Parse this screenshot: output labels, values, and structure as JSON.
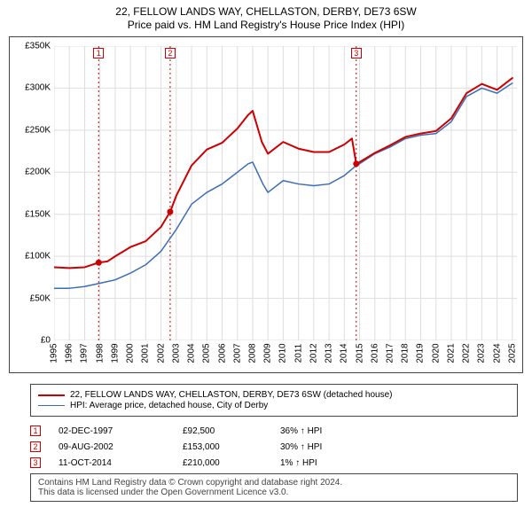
{
  "title": {
    "line1": "22, FELLOW LANDS WAY, CHELLASTON, DERBY, DE73 6SW",
    "line2": "Price paid vs. HM Land Registry's House Price Index (HPI)"
  },
  "chart": {
    "type": "line",
    "background_color": "#ffffff",
    "border_color": "#444444",
    "grid_color": "#dddddd",
    "label_fontsize": 10,
    "ylabel_prefix": "£",
    "ylim": [
      0,
      350000
    ],
    "ytick_step": 50000,
    "yticks": [
      "£0",
      "£50K",
      "£100K",
      "£150K",
      "£200K",
      "£250K",
      "£300K",
      "£350K"
    ],
    "x_years": [
      1995,
      1996,
      1997,
      1998,
      1999,
      2000,
      2001,
      2002,
      2003,
      2004,
      2005,
      2006,
      2007,
      2008,
      2009,
      2010,
      2011,
      2012,
      2013,
      2014,
      2015,
      2016,
      2017,
      2018,
      2019,
      2020,
      2021,
      2022,
      2023,
      2024,
      2025
    ],
    "series": [
      {
        "name": "property",
        "label": "22, FELLOW LANDS WAY, CHELLASTON, DERBY, DE73 6SW (detached house)",
        "color": "#cc0000",
        "line_width": 2,
        "data": [
          [
            1995,
            87000
          ],
          [
            1996,
            86000
          ],
          [
            1997,
            87000
          ],
          [
            1997.92,
            92500
          ],
          [
            1998.5,
            94000
          ],
          [
            1999,
            100000
          ],
          [
            2000,
            111000
          ],
          [
            2001,
            118000
          ],
          [
            2002,
            135000
          ],
          [
            2002.6,
            153000
          ],
          [
            2003,
            172000
          ],
          [
            2004,
            208000
          ],
          [
            2005,
            227000
          ],
          [
            2006,
            235000
          ],
          [
            2007,
            252000
          ],
          [
            2007.7,
            268000
          ],
          [
            2008,
            273000
          ],
          [
            2008.6,
            236000
          ],
          [
            2009,
            222000
          ],
          [
            2010,
            236000
          ],
          [
            2011,
            228000
          ],
          [
            2012,
            224000
          ],
          [
            2013,
            224000
          ],
          [
            2014,
            233000
          ],
          [
            2014.5,
            240000
          ],
          [
            2014.78,
            210000
          ],
          [
            2015,
            212000
          ],
          [
            2016,
            223000
          ],
          [
            2017,
            232000
          ],
          [
            2018,
            242000
          ],
          [
            2019,
            246000
          ],
          [
            2020,
            249000
          ],
          [
            2021,
            264000
          ],
          [
            2022,
            294000
          ],
          [
            2023,
            305000
          ],
          [
            2024,
            298000
          ],
          [
            2025,
            312000
          ]
        ]
      },
      {
        "name": "hpi",
        "label": "HPI: Average price, detached house, City of Derby",
        "color": "#3b6db5",
        "line_width": 1.5,
        "data": [
          [
            1995,
            62000
          ],
          [
            1996,
            62000
          ],
          [
            1997,
            64000
          ],
          [
            1998,
            68000
          ],
          [
            1999,
            72000
          ],
          [
            2000,
            80000
          ],
          [
            2001,
            90000
          ],
          [
            2002,
            106000
          ],
          [
            2003,
            132000
          ],
          [
            2004,
            162000
          ],
          [
            2005,
            176000
          ],
          [
            2006,
            186000
          ],
          [
            2007,
            200000
          ],
          [
            2007.7,
            210000
          ],
          [
            2008,
            212000
          ],
          [
            2008.7,
            185000
          ],
          [
            2009,
            176000
          ],
          [
            2010,
            190000
          ],
          [
            2011,
            186000
          ],
          [
            2012,
            184000
          ],
          [
            2013,
            186000
          ],
          [
            2014,
            196000
          ],
          [
            2014.78,
            208000
          ],
          [
            2015,
            210000
          ],
          [
            2016,
            222000
          ],
          [
            2017,
            230000
          ],
          [
            2018,
            240000
          ],
          [
            2019,
            244000
          ],
          [
            2020,
            246000
          ],
          [
            2021,
            260000
          ],
          [
            2022,
            290000
          ],
          [
            2023,
            300000
          ],
          [
            2024,
            294000
          ],
          [
            2025,
            306000
          ]
        ]
      }
    ],
    "markers": [
      {
        "num": "1",
        "year": 1997.92,
        "line_color": "#cc0000",
        "dash": "2,3"
      },
      {
        "num": "2",
        "year": 2002.6,
        "line_color": "#cc0000",
        "dash": "2,3"
      },
      {
        "num": "3",
        "year": 2014.78,
        "line_color": "#cc0000",
        "dash": "2,3"
      }
    ],
    "sale_points": [
      {
        "year": 1997.92,
        "value": 92500,
        "color": "#cc0000"
      },
      {
        "year": 2002.6,
        "value": 153000,
        "color": "#cc0000"
      },
      {
        "year": 2014.78,
        "value": 210000,
        "color": "#cc0000"
      }
    ]
  },
  "legend": {
    "items": [
      {
        "color": "#cc0000",
        "width": 2,
        "text": "22, FELLOW LANDS WAY, CHELLASTON, DERBY, DE73 6SW (detached house)"
      },
      {
        "color": "#3b6db5",
        "width": 1.5,
        "text": "HPI: Average price, detached house, City of Derby"
      }
    ]
  },
  "sales": [
    {
      "num": "1",
      "date": "02-DEC-1997",
      "price": "£92,500",
      "pct": "36% ↑ HPI"
    },
    {
      "num": "2",
      "date": "09-AUG-2002",
      "price": "£153,000",
      "pct": "30% ↑ HPI"
    },
    {
      "num": "3",
      "date": "11-OCT-2014",
      "price": "£210,000",
      "pct": "1% ↑ HPI"
    }
  ],
  "footer": {
    "line1": "Contains HM Land Registry data © Crown copyright and database right 2024.",
    "line2": "This data is licensed under the Open Government Licence v3.0."
  }
}
